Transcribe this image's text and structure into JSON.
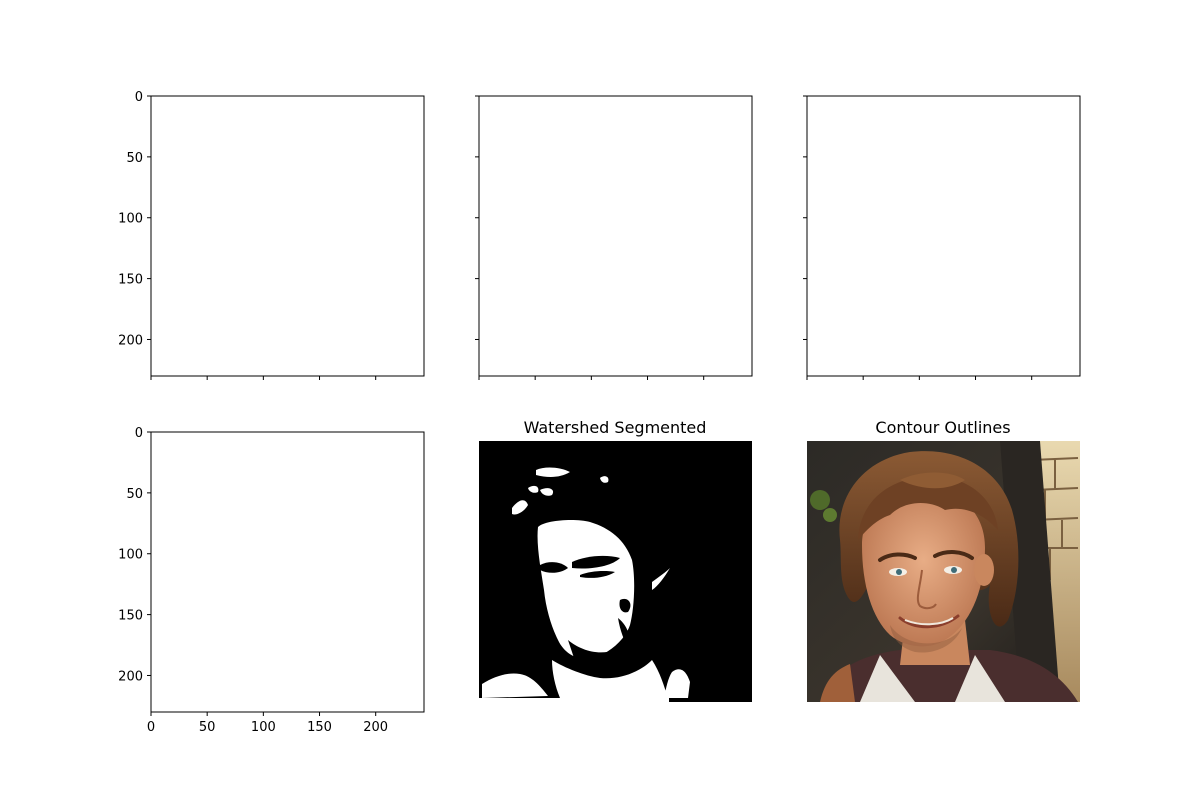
{
  "chart_data": [
    {
      "type": "image",
      "title": "",
      "grid": false,
      "xlim": [
        0,
        243
      ],
      "ylim": [
        230,
        0
      ],
      "yticks": [
        0,
        50,
        100,
        150,
        200
      ],
      "ytick_labels": [
        "0",
        "50",
        "100",
        "150",
        "200"
      ],
      "xticks": [
        0,
        50,
        100,
        150,
        200
      ],
      "xtick_labels": [],
      "content": "blank"
    },
    {
      "type": "image",
      "title": "",
      "grid": false,
      "xlim": [
        0,
        243
      ],
      "ylim": [
        230,
        0
      ],
      "yticks": [
        0,
        50,
        100,
        150,
        200
      ],
      "ytick_labels": [],
      "xticks": [
        0,
        50,
        100,
        150,
        200
      ],
      "xtick_labels": [],
      "content": "blank"
    },
    {
      "type": "image",
      "title": "",
      "grid": false,
      "xlim": [
        0,
        243
      ],
      "ylim": [
        230,
        0
      ],
      "yticks": [
        0,
        50,
        100,
        150,
        200
      ],
      "ytick_labels": [],
      "xticks": [
        0,
        50,
        100,
        150,
        200
      ],
      "xtick_labels": [],
      "content": "blank"
    },
    {
      "type": "image",
      "title": "",
      "grid": false,
      "xlim": [
        0,
        243
      ],
      "ylim": [
        230,
        0
      ],
      "yticks": [
        0,
        50,
        100,
        150,
        200
      ],
      "ytick_labels": [
        "0",
        "50",
        "100",
        "150",
        "200"
      ],
      "xticks": [
        0,
        50,
        100,
        150,
        200
      ],
      "xtick_labels": [
        "0",
        "50",
        "100",
        "150",
        "200"
      ],
      "content": "blank"
    },
    {
      "type": "image",
      "title": "Watershed Segmented",
      "grid": false,
      "axis": "off",
      "content": "binary-mask"
    },
    {
      "type": "image",
      "title": "Contour Outlines",
      "grid": false,
      "axis": "off",
      "content": "portrait"
    }
  ]
}
